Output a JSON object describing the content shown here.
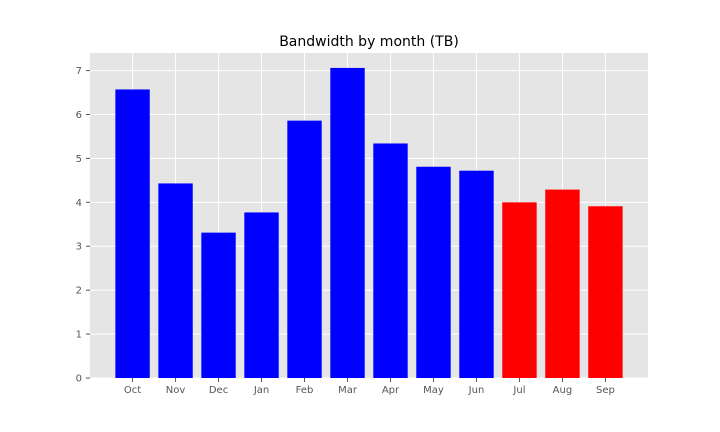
{
  "chart_data": {
    "type": "bar",
    "title": "Bandwidth by month (TB)",
    "xlabel": "",
    "ylabel": "",
    "categories": [
      "Oct",
      "Nov",
      "Dec",
      "Jan",
      "Feb",
      "Mar",
      "Apr",
      "May",
      "Jun",
      "Jul",
      "Aug",
      "Sep"
    ],
    "values": [
      6.57,
      4.43,
      3.31,
      3.77,
      5.86,
      7.06,
      5.34,
      4.81,
      4.72,
      4.0,
      4.29,
      3.91
    ],
    "bar_colors": [
      "#0000ff",
      "#0000ff",
      "#0000ff",
      "#0000ff",
      "#0000ff",
      "#0000ff",
      "#0000ff",
      "#0000ff",
      "#0000ff",
      "#ff0000",
      "#ff0000",
      "#ff0000"
    ],
    "ylim": [
      0,
      7.4
    ],
    "yticks": [
      0,
      1,
      2,
      3,
      4,
      5,
      6,
      7
    ],
    "grid": true,
    "legend": "none",
    "style": {
      "plot_background": "#e5e5e5",
      "grid_color": "#ffffff",
      "tick_color": "#555555"
    }
  }
}
